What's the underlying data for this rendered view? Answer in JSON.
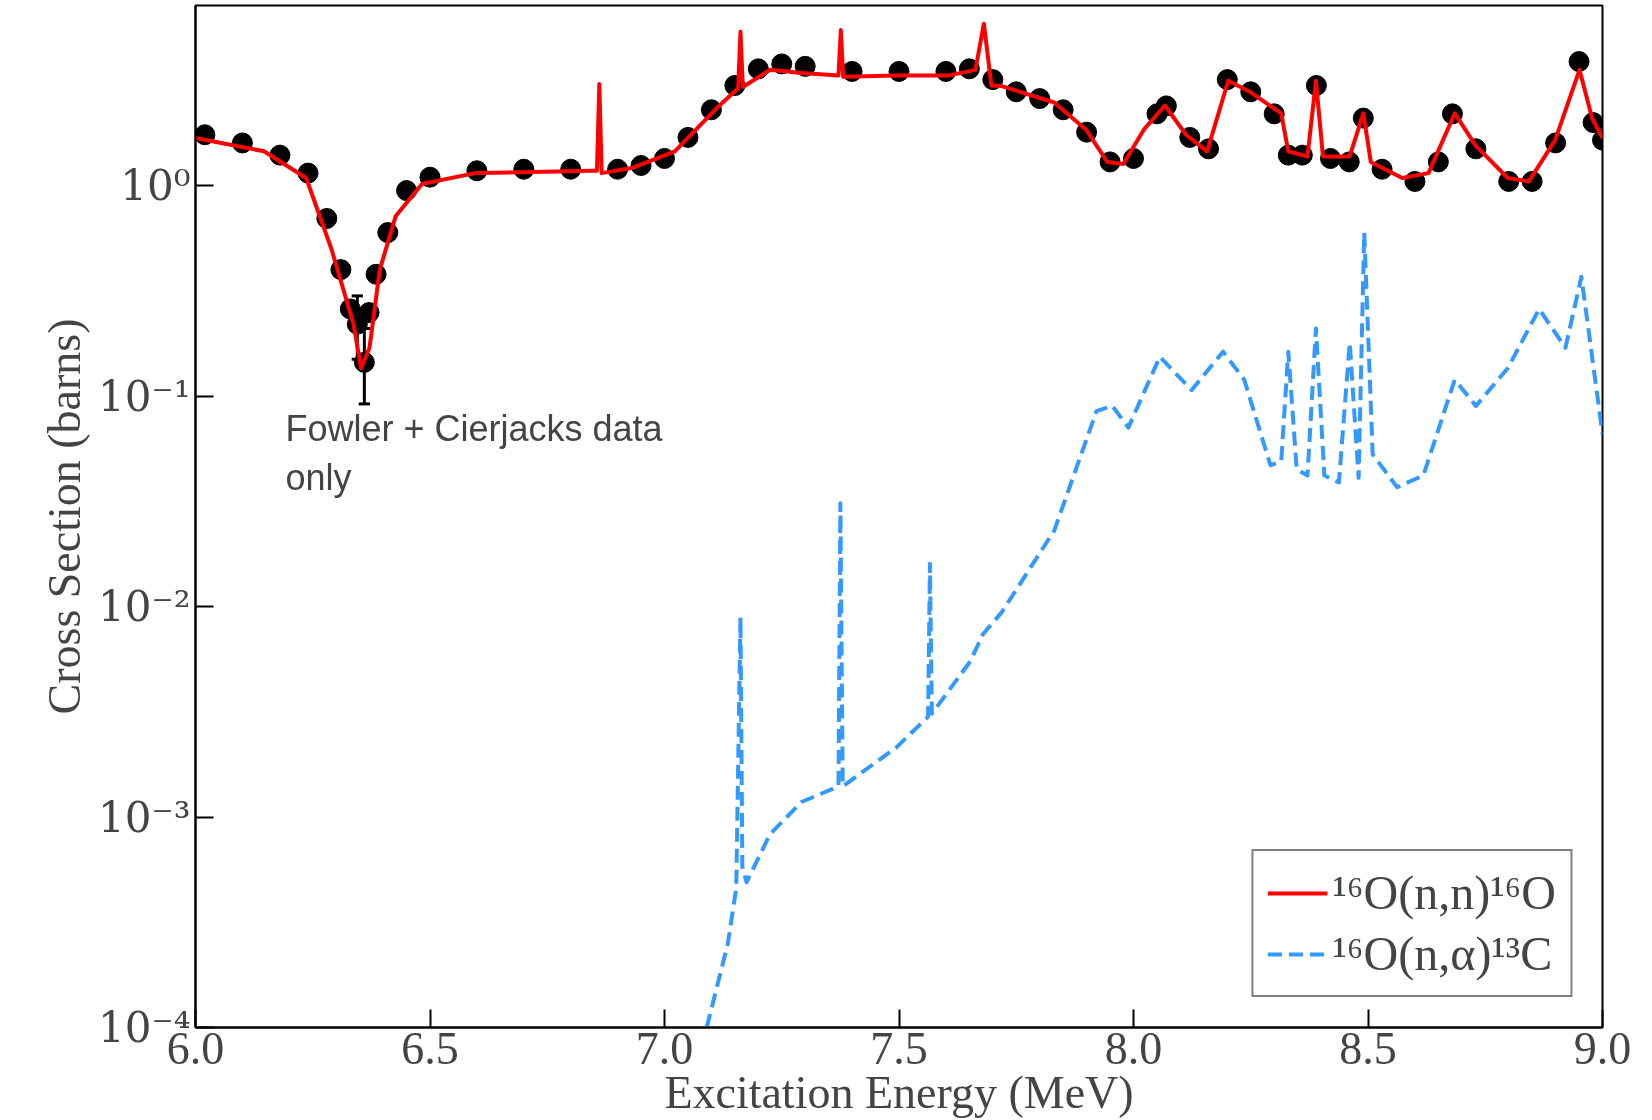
{
  "chart_data": {
    "type": "line",
    "xlabel": "Excitation Energy (MeV)",
    "ylabel": "Cross Section (barns)",
    "log": "y",
    "grid": false,
    "legend": "bottom right",
    "xlim": [
      6.0,
      9.0
    ],
    "ylim": [
      0.0001,
      7.2
    ],
    "xticks": [
      {
        "value": 6,
        "label": "6.0"
      },
      {
        "value": 6.5,
        "label": "6.5"
      },
      {
        "value": 7,
        "label": "7.0"
      },
      {
        "value": 7.5,
        "label": "7.5"
      },
      {
        "value": 8,
        "label": "8.0"
      },
      {
        "value": 8.5,
        "label": "8.5"
      },
      {
        "value": 9,
        "label": "9.0"
      }
    ],
    "yticks": [
      {
        "value": 0.0001,
        "label": "10⁻⁴"
      },
      {
        "value": 0.001,
        "label": "10⁻³"
      },
      {
        "value": 0.01,
        "label": "10⁻²"
      },
      {
        "value": 0.1,
        "label": "10⁻¹"
      },
      {
        "value": 1,
        "label": "10⁰"
      }
    ],
    "annotations": [
      "Fowler + Cierjacks data only"
    ],
    "series": [
      {
        "type": "scatter",
        "marker": "circle",
        "color": "#000000",
        "x": [
          6.02,
          6.1,
          6.18,
          6.24,
          6.28,
          6.31,
          6.33,
          6.345,
          6.36,
          6.37,
          6.385,
          6.41,
          6.45,
          6.5,
          6.6,
          6.7,
          6.8,
          6.9,
          6.95,
          7.0,
          7.05,
          7.1,
          7.15,
          7.2,
          7.25,
          7.3,
          7.4,
          7.5,
          7.6,
          7.65,
          7.7,
          7.75,
          7.8,
          7.85,
          7.9,
          7.95,
          8.0,
          8.05,
          8.07,
          8.12,
          8.16,
          8.2,
          8.25,
          8.3,
          8.33,
          8.36,
          8.39,
          8.42,
          8.46,
          8.49,
          8.53,
          8.6,
          8.65,
          8.68,
          8.73,
          8.8,
          8.85,
          8.9,
          8.95,
          8.98,
          9.0
        ],
        "values": [
          1.75,
          1.6,
          1.4,
          1.15,
          0.7,
          0.4,
          0.26,
          0.22,
          0.145,
          0.25,
          0.38,
          0.6,
          0.95,
          1.1,
          1.18,
          1.2,
          1.2,
          1.2,
          1.25,
          1.35,
          1.7,
          2.3,
          3.0,
          3.6,
          3.8,
          3.7,
          3.5,
          3.5,
          3.5,
          3.6,
          3.2,
          2.8,
          2.6,
          2.3,
          1.8,
          1.3,
          1.35,
          2.2,
          2.4,
          1.7,
          1.5,
          3.2,
          2.8,
          2.2,
          1.4,
          1.4,
          3.0,
          1.35,
          1.3,
          2.1,
          1.2,
          1.05,
          1.3,
          2.2,
          1.5,
          1.05,
          1.05,
          1.6,
          3.9,
          2.0,
          1.65
        ],
        "errors": [
          null,
          null,
          null,
          null,
          null,
          null,
          null,
          [
            0.15,
            0.3
          ],
          [
            0.092,
            0.21
          ],
          null,
          null,
          null,
          null,
          null,
          null,
          null,
          null,
          null,
          null,
          null,
          null,
          null,
          null,
          null,
          null,
          null,
          null,
          null,
          null,
          null,
          null,
          null,
          null,
          null,
          null,
          null,
          null,
          null,
          null,
          null,
          null,
          null,
          null,
          null,
          null,
          null,
          null,
          null,
          null,
          null,
          null,
          null,
          null,
          null,
          null,
          null,
          null,
          null,
          null,
          null,
          null
        ]
      },
      {
        "name": "¹⁶O(n,n)¹⁶O",
        "line_style": "solid",
        "color": "#ff0000",
        "x": [
          6.0,
          6.146,
          6.236,
          6.29,
          6.337,
          6.353,
          6.371,
          6.393,
          6.427,
          6.483,
          6.596,
          6.843,
          6.856,
          6.861,
          6.866,
          6.933,
          7.022,
          7.112,
          7.157,
          7.162,
          7.167,
          7.225,
          7.292,
          7.371,
          7.376,
          7.381,
          7.494,
          7.607,
          7.663,
          7.681,
          7.697,
          7.719,
          7.831,
          7.899,
          7.944,
          7.978,
          8.022,
          8.067,
          8.112,
          8.157,
          8.202,
          8.247,
          8.315,
          8.33,
          8.371,
          8.389,
          8.404,
          8.461,
          8.49,
          8.506,
          8.573,
          8.629,
          8.685,
          8.73,
          8.798,
          8.843,
          8.899,
          8.951,
          8.978,
          9.0
        ],
        "values": [
          1.69,
          1.46,
          1.09,
          0.5,
          0.22,
          0.136,
          0.17,
          0.4,
          0.72,
          1.02,
          1.15,
          1.18,
          1.18,
          3.05,
          1.15,
          1.22,
          1.46,
          2.35,
          2.91,
          5.4,
          2.95,
          3.56,
          3.44,
          3.35,
          5.5,
          3.3,
          3.35,
          3.35,
          3.56,
          5.9,
          3.0,
          2.98,
          2.49,
          1.85,
          1.3,
          1.27,
          1.85,
          2.41,
          1.75,
          1.46,
          3.16,
          2.81,
          2.21,
          1.46,
          1.38,
          3.16,
          1.38,
          1.38,
          2.21,
          1.3,
          1.09,
          1.15,
          2.21,
          1.55,
          1.09,
          1.05,
          1.65,
          3.56,
          2.09,
          1.69
        ]
      },
      {
        "name": "¹⁶O(n,α)¹³C",
        "line_style": "dashed",
        "color": "#3399ff",
        "x": [
          7.09,
          7.135,
          7.153,
          7.162,
          7.166,
          7.175,
          7.225,
          7.292,
          7.371,
          7.375,
          7.38,
          7.494,
          7.562,
          7.566,
          7.57,
          7.652,
          7.679,
          7.719,
          7.831,
          7.921,
          7.955,
          7.989,
          8.056,
          8.124,
          8.191,
          8.236,
          8.292,
          8.315,
          8.33,
          8.348,
          8.371,
          8.389,
          8.407,
          8.438,
          8.461,
          8.48,
          8.492,
          8.51,
          8.562,
          8.618,
          8.685,
          8.73,
          8.798,
          8.865,
          8.921,
          8.955,
          9.0
        ],
        "values": [
          0.0001,
          0.00025,
          0.00046,
          0.0089,
          0.00058,
          0.00049,
          0.00083,
          0.00118,
          0.0014,
          0.031,
          0.0014,
          0.00214,
          0.003,
          0.016,
          0.0031,
          0.0055,
          0.0074,
          0.0094,
          0.023,
          0.085,
          0.09,
          0.071,
          0.154,
          0.107,
          0.163,
          0.12,
          0.047,
          0.049,
          0.163,
          0.045,
          0.042,
          0.21,
          0.042,
          0.039,
          0.18,
          0.041,
          0.6,
          0.053,
          0.037,
          0.042,
          0.12,
          0.09,
          0.136,
          0.26,
          0.17,
          0.37,
          0.066
        ]
      }
    ]
  }
}
